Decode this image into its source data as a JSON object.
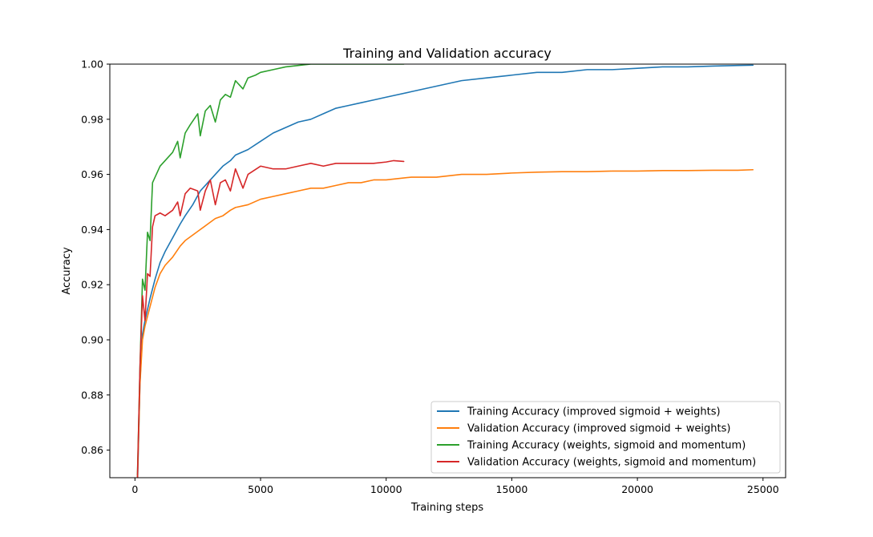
{
  "chart_data": {
    "type": "line",
    "title": "Training and Validation accuracy",
    "xlabel": "Training steps",
    "ylabel": "Accuracy",
    "xlim": [
      -1000,
      25900
    ],
    "ylim": [
      0.85,
      1.0
    ],
    "xticks": [
      0,
      5000,
      10000,
      15000,
      20000,
      25000
    ],
    "xtick_labels": [
      "0",
      "5000",
      "10000",
      "15000",
      "20000",
      "25000"
    ],
    "yticks": [
      0.86,
      0.88,
      0.9,
      0.92,
      0.94,
      0.96,
      0.98,
      1.0
    ],
    "ytick_labels": [
      "0.86",
      "0.88",
      "0.90",
      "0.92",
      "0.94",
      "0.96",
      "0.98",
      "1.00"
    ],
    "grid": false,
    "legend_position": "lower-right",
    "series": [
      {
        "name": "Training Accuracy (improved sigmoid + weights)",
        "color": "#1f77b4",
        "x": [
          100,
          200,
          300,
          400,
          600,
          800,
          1000,
          1200,
          1500,
          1800,
          2000,
          2300,
          2600,
          2900,
          3200,
          3500,
          3800,
          4000,
          4500,
          5000,
          5500,
          6000,
          6500,
          7000,
          7500,
          8000,
          8500,
          9000,
          9500,
          10000,
          11000,
          12000,
          13000,
          14000,
          15000,
          16000,
          17000,
          18000,
          19000,
          20000,
          21000,
          22000,
          23000,
          24000,
          24600
        ],
        "y": [
          0.847,
          0.885,
          0.902,
          0.907,
          0.915,
          0.922,
          0.928,
          0.932,
          0.937,
          0.942,
          0.945,
          0.949,
          0.954,
          0.957,
          0.96,
          0.963,
          0.965,
          0.967,
          0.969,
          0.972,
          0.975,
          0.977,
          0.979,
          0.98,
          0.982,
          0.984,
          0.985,
          0.986,
          0.987,
          0.988,
          0.99,
          0.992,
          0.994,
          0.995,
          0.996,
          0.997,
          0.997,
          0.998,
          0.998,
          0.9985,
          0.999,
          0.999,
          0.9993,
          0.9995,
          0.9996
        ]
      },
      {
        "name": "Validation Accuracy (improved sigmoid + weights)",
        "color": "#ff7f0e",
        "x": [
          100,
          200,
          300,
          400,
          600,
          800,
          1000,
          1200,
          1500,
          1800,
          2000,
          2300,
          2600,
          2900,
          3200,
          3500,
          3800,
          4000,
          4500,
          5000,
          5500,
          6000,
          6500,
          7000,
          7500,
          8000,
          8500,
          9000,
          9500,
          10000,
          11000,
          12000,
          13000,
          14000,
          15000,
          16000,
          17000,
          18000,
          19000,
          20000,
          21000,
          22000,
          23000,
          24000,
          24600
        ],
        "y": [
          0.849,
          0.884,
          0.9,
          0.905,
          0.912,
          0.919,
          0.924,
          0.927,
          0.93,
          0.934,
          0.936,
          0.938,
          0.94,
          0.942,
          0.944,
          0.945,
          0.947,
          0.948,
          0.949,
          0.951,
          0.952,
          0.953,
          0.954,
          0.955,
          0.955,
          0.956,
          0.957,
          0.957,
          0.958,
          0.958,
          0.959,
          0.959,
          0.96,
          0.96,
          0.9605,
          0.9608,
          0.961,
          0.961,
          0.9612,
          0.9612,
          0.9614,
          0.9614,
          0.9615,
          0.9615,
          0.9617
        ]
      },
      {
        "name": "Training Accuracy (weights, sigmoid and momentum)",
        "color": "#2ca02c",
        "x": [
          100,
          200,
          300,
          400,
          500,
          600,
          700,
          800,
          1000,
          1200,
          1500,
          1700,
          1800,
          2000,
          2200,
          2500,
          2600,
          2800,
          3000,
          3200,
          3400,
          3600,
          3800,
          4000,
          4300,
          4500,
          4800,
          5000,
          5500,
          6000,
          6500,
          7000,
          7500,
          8000,
          8500,
          9000,
          9500,
          10000,
          10700
        ],
        "y": [
          0.851,
          0.89,
          0.922,
          0.918,
          0.939,
          0.936,
          0.957,
          0.959,
          0.963,
          0.965,
          0.968,
          0.972,
          0.966,
          0.975,
          0.978,
          0.982,
          0.974,
          0.983,
          0.985,
          0.979,
          0.987,
          0.989,
          0.988,
          0.994,
          0.991,
          0.995,
          0.996,
          0.997,
          0.998,
          0.999,
          0.9995,
          1.0,
          1.0,
          1.0,
          1.0,
          1.0,
          1.0,
          1.0,
          1.0
        ]
      },
      {
        "name": "Validation Accuracy (weights, sigmoid and momentum)",
        "color": "#d62728",
        "x": [
          100,
          200,
          300,
          400,
          500,
          600,
          700,
          800,
          1000,
          1200,
          1500,
          1700,
          1800,
          2000,
          2200,
          2500,
          2600,
          2800,
          3000,
          3200,
          3400,
          3600,
          3800,
          4000,
          4300,
          4500,
          5000,
          5500,
          6000,
          6500,
          7000,
          7500,
          8000,
          8500,
          9000,
          9500,
          10000,
          10300,
          10700
        ],
        "y": [
          0.85,
          0.89,
          0.916,
          0.907,
          0.924,
          0.923,
          0.941,
          0.945,
          0.946,
          0.945,
          0.947,
          0.95,
          0.945,
          0.953,
          0.955,
          0.954,
          0.947,
          0.954,
          0.958,
          0.949,
          0.957,
          0.958,
          0.954,
          0.962,
          0.955,
          0.96,
          0.963,
          0.962,
          0.962,
          0.963,
          0.964,
          0.963,
          0.964,
          0.964,
          0.964,
          0.964,
          0.9645,
          0.965,
          0.9647
        ]
      }
    ]
  }
}
